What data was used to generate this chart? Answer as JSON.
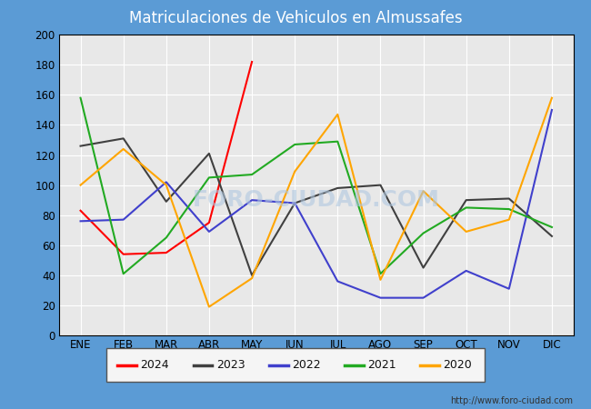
{
  "title": "Matriculaciones de Vehiculos en Almussafes",
  "title_color": "#ffffff",
  "title_bg_color": "#5b9bd5",
  "months": [
    "ENE",
    "FEB",
    "MAR",
    "ABR",
    "MAY",
    "JUN",
    "JUL",
    "AGO",
    "SEP",
    "OCT",
    "NOV",
    "DIC"
  ],
  "series": {
    "2024": {
      "color": "#ff0000",
      "data": [
        83,
        54,
        55,
        75,
        182,
        null,
        null,
        null,
        null,
        null,
        null,
        null
      ]
    },
    "2023": {
      "color": "#404040",
      "data": [
        126,
        131,
        89,
        121,
        40,
        88,
        98,
        100,
        45,
        90,
        91,
        66
      ]
    },
    "2022": {
      "color": "#4040cc",
      "data": [
        76,
        77,
        102,
        69,
        90,
        88,
        36,
        25,
        25,
        43,
        31,
        150
      ]
    },
    "2021": {
      "color": "#22aa22",
      "data": [
        158,
        41,
        65,
        105,
        107,
        127,
        129,
        41,
        68,
        85,
        84,
        72
      ]
    },
    "2020": {
      "color": "#FFA500",
      "data": [
        100,
        124,
        100,
        19,
        38,
        109,
        147,
        37,
        96,
        69,
        77,
        158
      ]
    }
  },
  "ylim": [
    0,
    200
  ],
  "yticks": [
    0,
    20,
    40,
    60,
    80,
    100,
    120,
    140,
    160,
    180,
    200
  ],
  "plot_bg_color": "#e8e8e8",
  "grid_color": "#ffffff",
  "watermark": "FORO-CIUDAD.COM",
  "footer_url": "http://www.foro-ciudad.com"
}
